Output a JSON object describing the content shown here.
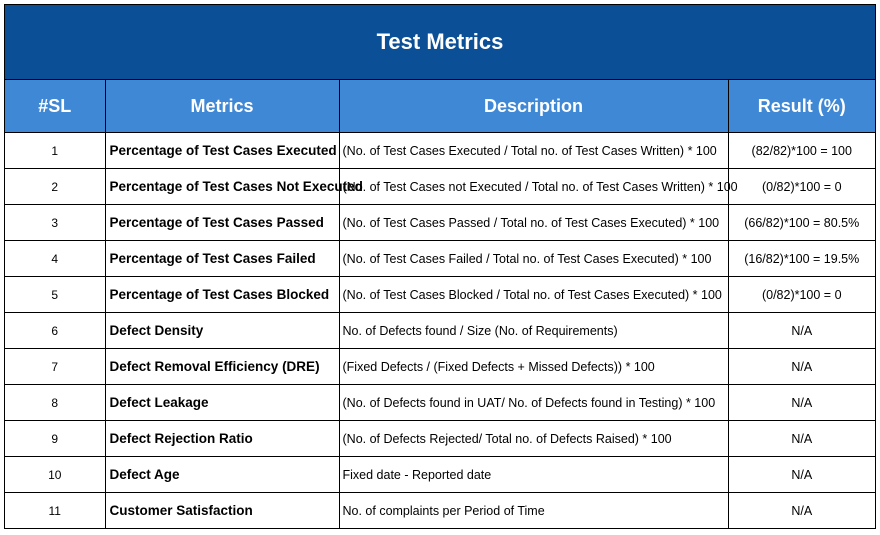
{
  "title": "Test Metrics",
  "headers": {
    "sl": "#SL",
    "metrics": "Metrics",
    "description": "Description",
    "result": "Result (%)"
  },
  "rows": [
    {
      "sl": "1",
      "metric": "Percentage of Test Cases Executed",
      "description": "(No. of Test Cases Executed / Total no. of Test Cases Written) * 100",
      "result": "(82/82)*100 = 100"
    },
    {
      "sl": "2",
      "metric": "Percentage of Test Cases Not Executed",
      "description": "(No. of Test Cases not Executed / Total no. of Test Cases Written) * 100",
      "result": "(0/82)*100 = 0"
    },
    {
      "sl": "3",
      "metric": "Percentage of Test Cases Passed",
      "description": "(No. of Test Cases Passed / Total no. of Test Cases Executed) * 100",
      "result": "(66/82)*100 = 80.5%"
    },
    {
      "sl": "4",
      "metric": "Percentage of Test Cases Failed",
      "description": "(No. of Test Cases Failed / Total no. of Test Cases Executed) * 100",
      "result": "(16/82)*100 = 19.5%"
    },
    {
      "sl": "5",
      "metric": "Percentage of Test Cases Blocked",
      "description": "(No. of Test Cases Blocked / Total no. of Test Cases Executed) * 100",
      "result": "(0/82)*100 = 0"
    },
    {
      "sl": "6",
      "metric": "Defect Density",
      "description": "No. of Defects found / Size (No. of Requirements)",
      "result": "N/A"
    },
    {
      "sl": "7",
      "metric": "Defect Removal Efficiency (DRE)",
      "description": "(Fixed Defects / (Fixed Defects + Missed Defects)) * 100",
      "result": "N/A"
    },
    {
      "sl": "8",
      "metric": "Defect Leakage",
      "description": "(No. of Defects found in UAT/ No. of Defects found in Testing) * 100",
      "result": "N/A"
    },
    {
      "sl": "9",
      "metric": "Defect Rejection Ratio",
      "description": "(No. of Defects Rejected/ Total no. of Defects Raised) * 100",
      "result": "N/A"
    },
    {
      "sl": "10",
      "metric": "Defect Age",
      "description": "Fixed date - Reported date",
      "result": "N/A"
    },
    {
      "sl": "11",
      "metric": "Customer Satisfaction",
      "description": "No. of complaints per Period of Time",
      "result": "N/A"
    }
  ]
}
